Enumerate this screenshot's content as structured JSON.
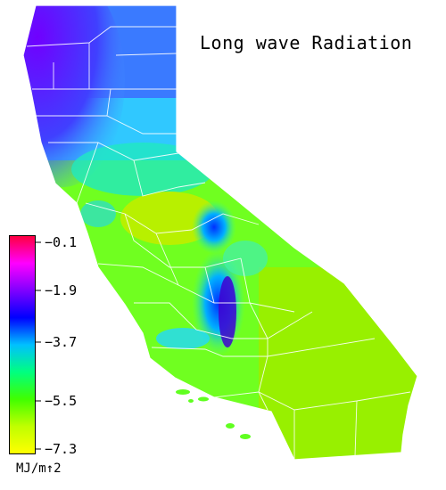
{
  "title": "Long wave Radiation",
  "legend": {
    "ticks": [
      "−0.1",
      "−1.9",
      "−3.7",
      "−5.5",
      "−7.3"
    ],
    "unit": "MJ/m↑2",
    "gradient": [
      "#ff0040",
      "#ff00ff",
      "#8000ff",
      "#0000ff",
      "#00c0ff",
      "#00ff80",
      "#40ff00",
      "#c0ff00",
      "#ffff00"
    ]
  },
  "colors": {
    "boundary": "#ffffff",
    "north_coast": "#6a00ff",
    "north_interior": "#3080ff",
    "central_valley": "#a0f000",
    "sierra": "#00c0ff",
    "south": "#60ff00",
    "desert": "#90f000"
  }
}
